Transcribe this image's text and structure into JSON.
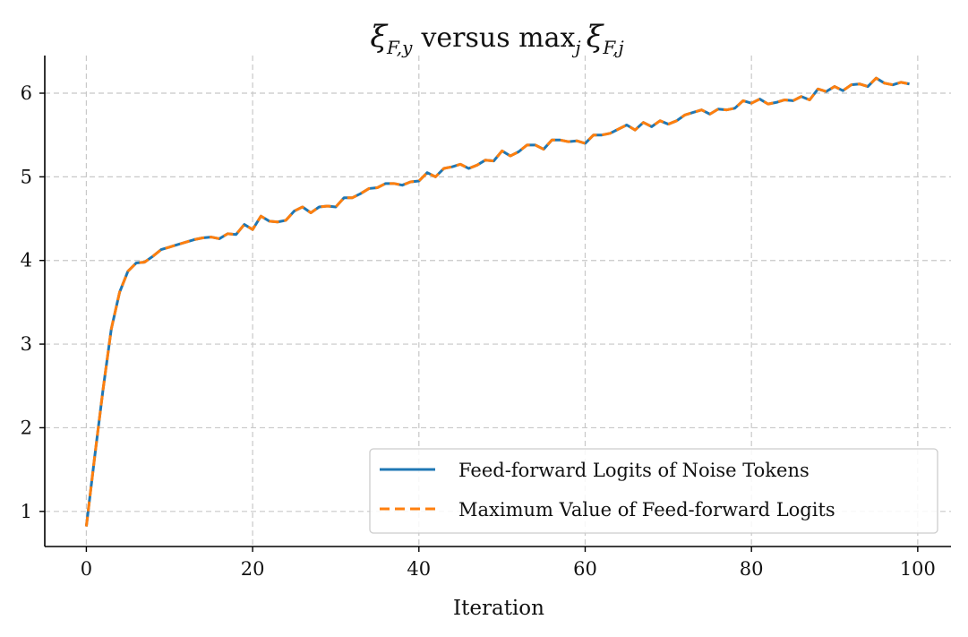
{
  "chart_data": {
    "type": "line",
    "title": "ξF,y versus maxj ξF,j",
    "title_parts": {
      "xi": "ξ",
      "sub1": "F,y",
      "mid": "versus max",
      "sub_j": "j",
      "sub2": "F,j"
    },
    "xlabel": "Iteration",
    "ylabel": "",
    "xlim": [
      -5,
      104
    ],
    "ylim": [
      0.58,
      6.45
    ],
    "xticks": [
      0,
      20,
      40,
      60,
      80,
      100
    ],
    "yticks": [
      1,
      2,
      3,
      4,
      5,
      6
    ],
    "grid": true,
    "legend_position": "lower-right",
    "x": [
      0,
      1,
      2,
      3,
      4,
      5,
      6,
      7,
      8,
      9,
      10,
      11,
      12,
      13,
      14,
      15,
      16,
      17,
      18,
      19,
      20,
      21,
      22,
      23,
      24,
      25,
      26,
      27,
      28,
      29,
      30,
      31,
      32,
      33,
      34,
      35,
      36,
      37,
      38,
      39,
      40,
      41,
      42,
      43,
      44,
      45,
      46,
      47,
      48,
      49,
      50,
      51,
      52,
      53,
      54,
      55,
      56,
      57,
      58,
      59,
      60,
      61,
      62,
      63,
      64,
      65,
      66,
      67,
      68,
      69,
      70,
      71,
      72,
      73,
      74,
      75,
      76,
      77,
      78,
      79,
      80,
      81,
      82,
      83,
      84,
      85,
      86,
      87,
      88,
      89,
      90,
      91,
      92,
      93,
      94,
      95,
      96,
      97,
      98,
      99
    ],
    "series": [
      {
        "name": "Feed-forward Logits of Noise Tokens",
        "color": "#1f77b4",
        "style": "solid",
        "values": [
          0.82,
          1.65,
          2.45,
          3.18,
          3.62,
          3.87,
          3.97,
          3.98,
          4.05,
          4.13,
          4.16,
          4.19,
          4.22,
          4.25,
          4.27,
          4.28,
          4.26,
          4.32,
          4.31,
          4.43,
          4.37,
          4.53,
          4.47,
          4.46,
          4.48,
          4.59,
          4.64,
          4.57,
          4.64,
          4.65,
          4.64,
          4.75,
          4.75,
          4.8,
          4.86,
          4.87,
          4.92,
          4.92,
          4.9,
          4.94,
          4.95,
          5.05,
          5.0,
          5.1,
          5.12,
          5.15,
          5.1,
          5.14,
          5.2,
          5.19,
          5.31,
          5.25,
          5.3,
          5.38,
          5.38,
          5.33,
          5.44,
          5.44,
          5.42,
          5.43,
          5.4,
          5.5,
          5.5,
          5.52,
          5.57,
          5.62,
          5.56,
          5.65,
          5.6,
          5.67,
          5.63,
          5.67,
          5.74,
          5.77,
          5.8,
          5.75,
          5.81,
          5.8,
          5.82,
          5.91,
          5.88,
          5.93,
          5.87,
          5.89,
          5.92,
          5.91,
          5.96,
          5.92,
          6.05,
          6.02,
          6.08,
          6.03,
          6.1,
          6.11,
          6.08,
          6.18,
          6.12,
          6.1,
          6.13,
          6.11
        ]
      },
      {
        "name": "Maximum Value of Feed-forward Logits",
        "color": "#ff7f0e",
        "style": "dashed",
        "values": [
          0.82,
          1.65,
          2.45,
          3.18,
          3.62,
          3.87,
          3.97,
          3.98,
          4.05,
          4.13,
          4.16,
          4.19,
          4.22,
          4.25,
          4.27,
          4.28,
          4.26,
          4.32,
          4.31,
          4.43,
          4.37,
          4.53,
          4.47,
          4.46,
          4.48,
          4.59,
          4.64,
          4.57,
          4.64,
          4.65,
          4.64,
          4.75,
          4.75,
          4.8,
          4.86,
          4.87,
          4.92,
          4.92,
          4.9,
          4.94,
          4.95,
          5.05,
          5.0,
          5.1,
          5.12,
          5.15,
          5.1,
          5.14,
          5.2,
          5.19,
          5.31,
          5.25,
          5.3,
          5.38,
          5.38,
          5.33,
          5.44,
          5.44,
          5.42,
          5.43,
          5.4,
          5.5,
          5.5,
          5.52,
          5.57,
          5.62,
          5.56,
          5.65,
          5.6,
          5.67,
          5.63,
          5.67,
          5.74,
          5.77,
          5.8,
          5.75,
          5.81,
          5.8,
          5.82,
          5.91,
          5.88,
          5.93,
          5.87,
          5.89,
          5.92,
          5.91,
          5.96,
          5.92,
          6.05,
          6.02,
          6.08,
          6.03,
          6.1,
          6.11,
          6.08,
          6.18,
          6.12,
          6.1,
          6.13,
          6.11
        ]
      }
    ]
  }
}
